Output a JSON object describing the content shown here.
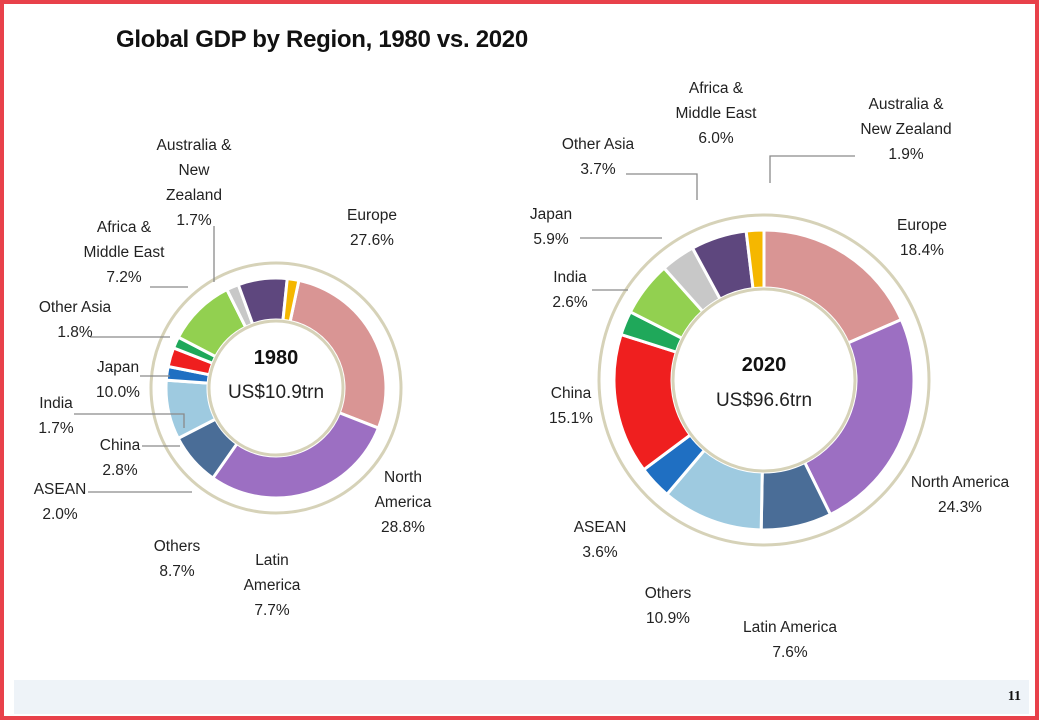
{
  "title": "Global GDP by Region, 1980 vs. 2020",
  "page_number": "11",
  "chart_data": [
    {
      "type": "pie",
      "variant": "donut",
      "year": "1980",
      "total": "US$10.9trn",
      "slices": [
        {
          "name": "Europe",
          "label": [
            "Europe"
          ],
          "pct_text": "27.6%",
          "value": 27.6,
          "color": "#d99594"
        },
        {
          "name": "North America",
          "label": [
            "North",
            "America"
          ],
          "pct_text": "28.8%",
          "value": 28.8,
          "color": "#9c6fc2"
        },
        {
          "name": "Latin America",
          "label": [
            "Latin",
            "America"
          ],
          "pct_text": "7.7%",
          "value": 7.7,
          "color": "#4a6d97"
        },
        {
          "name": "Others",
          "label": [
            "Others"
          ],
          "pct_text": "8.7%",
          "value": 8.7,
          "color": "#9ecae0"
        },
        {
          "name": "ASEAN",
          "label": [
            "ASEAN"
          ],
          "pct_text": "2.0%",
          "value": 2.0,
          "color": "#1f6fc2"
        },
        {
          "name": "China",
          "label": [
            "China"
          ],
          "pct_text": "2.8%",
          "value": 2.8,
          "color": "#ef1f1f"
        },
        {
          "name": "India",
          "label": [
            "India"
          ],
          "pct_text": "1.7%",
          "value": 1.7,
          "color": "#1fa85a"
        },
        {
          "name": "Japan",
          "label": [
            "Japan"
          ],
          "pct_text": "10.0%",
          "value": 10.0,
          "color": "#92d050"
        },
        {
          "name": "Other Asia",
          "label": [
            "Other Asia"
          ],
          "pct_text": "1.8%",
          "value": 1.8,
          "color": "#c8c8c8"
        },
        {
          "name": "Africa & Middle East",
          "label": [
            "Africa &",
            "Middle East"
          ],
          "pct_text": "7.2%",
          "value": 7.2,
          "color": "#5e477e"
        },
        {
          "name": "Australia & New Zealand",
          "label": [
            "Australia &",
            "New",
            "Zealand"
          ],
          "pct_text": "1.7%",
          "value": 1.7,
          "color": "#f5b700"
        }
      ]
    },
    {
      "type": "pie",
      "variant": "donut",
      "year": "2020",
      "total": "US$96.6trn",
      "slices": [
        {
          "name": "Europe",
          "label": [
            "Europe"
          ],
          "pct_text": "18.4%",
          "value": 18.4,
          "color": "#d99594"
        },
        {
          "name": "North America",
          "label": [
            "North America"
          ],
          "pct_text": "24.3%",
          "value": 24.3,
          "color": "#9c6fc2"
        },
        {
          "name": "Latin America",
          "label": [
            "Latin America"
          ],
          "pct_text": "7.6%",
          "value": 7.6,
          "color": "#4a6d97"
        },
        {
          "name": "Others",
          "label": [
            "Others"
          ],
          "pct_text": "10.9%",
          "value": 10.9,
          "color": "#9ecae0"
        },
        {
          "name": "ASEAN",
          "label": [
            "ASEAN"
          ],
          "pct_text": "3.6%",
          "value": 3.6,
          "color": "#1f6fc2"
        },
        {
          "name": "China",
          "label": [
            "China"
          ],
          "pct_text": "15.1%",
          "value": 15.1,
          "color": "#ef1f1f"
        },
        {
          "name": "India",
          "label": [
            "India"
          ],
          "pct_text": "2.6%",
          "value": 2.6,
          "color": "#1fa85a"
        },
        {
          "name": "Japan",
          "label": [
            "Japan"
          ],
          "pct_text": "5.9%",
          "value": 5.9,
          "color": "#92d050"
        },
        {
          "name": "Other Asia",
          "label": [
            "Other Asia"
          ],
          "pct_text": "3.7%",
          "value": 3.7,
          "color": "#c8c8c8"
        },
        {
          "name": "Africa & Middle East",
          "label": [
            "Africa &",
            "Middle East"
          ],
          "pct_text": "6.0%",
          "value": 6.0,
          "color": "#5e477e"
        },
        {
          "name": "Australia & New Zealand",
          "label": [
            "Australia &",
            "New Zealand"
          ],
          "pct_text": "1.9%",
          "value": 1.9,
          "color": "#f5b700"
        }
      ]
    }
  ]
}
